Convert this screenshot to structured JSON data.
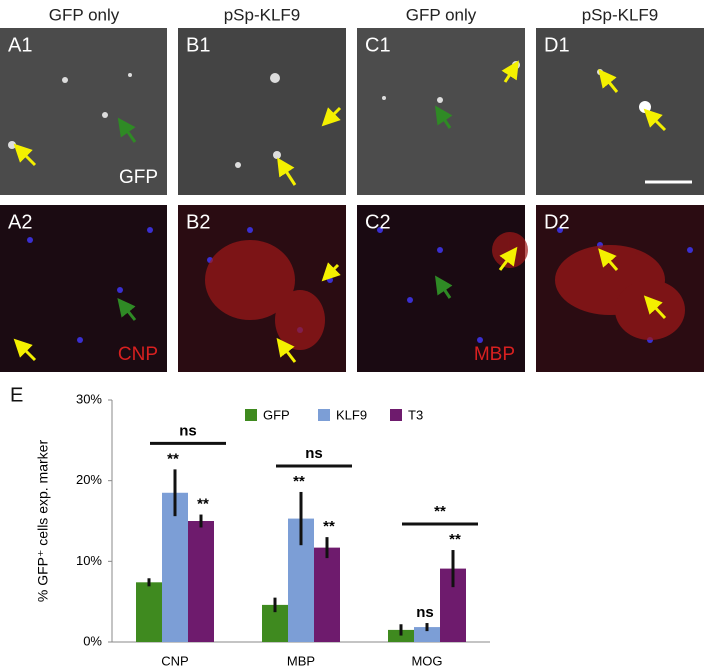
{
  "figure": {
    "column_headers": [
      "GFP only",
      "pSp-KLF9",
      "GFP only",
      "pSp-KLF9"
    ],
    "panels": [
      {
        "label": "A1",
        "marker": "GFP"
      },
      {
        "label": "B1"
      },
      {
        "label": "C1"
      },
      {
        "label": "D1"
      },
      {
        "label": "A2",
        "marker": "CNP"
      },
      {
        "label": "B2"
      },
      {
        "label": "C2",
        "marker": "MBP"
      },
      {
        "label": "D2"
      }
    ]
  },
  "chart_data": {
    "type": "bar",
    "panel_label": "E",
    "y_label": "% GFP⁺ cells exp. marker",
    "categories": [
      "CNP",
      "MBP",
      "MOG"
    ],
    "series": [
      {
        "name": "GFP",
        "color": "#3f8a1f",
        "values": [
          7.4,
          4.6,
          1.5
        ],
        "errors": [
          0.5,
          0.9,
          0.7
        ],
        "significance": [
          null,
          null,
          null
        ]
      },
      {
        "name": "KLF9",
        "color": "#7c9ed6",
        "values": [
          18.5,
          15.3,
          1.85
        ],
        "errors": [
          2.9,
          3.3,
          0.5
        ],
        "significance": [
          "**",
          "**",
          "ns"
        ]
      },
      {
        "name": "T3",
        "color": "#6e1b6d",
        "values": [
          15.0,
          11.7,
          9.1
        ],
        "errors": [
          0.8,
          1.3,
          2.3
        ],
        "significance": [
          "**",
          "**",
          "**"
        ]
      }
    ],
    "brackets": [
      "ns",
      "ns",
      "**"
    ],
    "ylim": [
      0,
      30
    ],
    "yticks": [
      {
        "value": 0,
        "label": "0%"
      },
      {
        "value": 10,
        "label": "10%"
      },
      {
        "value": 20,
        "label": "20%"
      },
      {
        "value": 30,
        "label": "30%"
      }
    ]
  }
}
